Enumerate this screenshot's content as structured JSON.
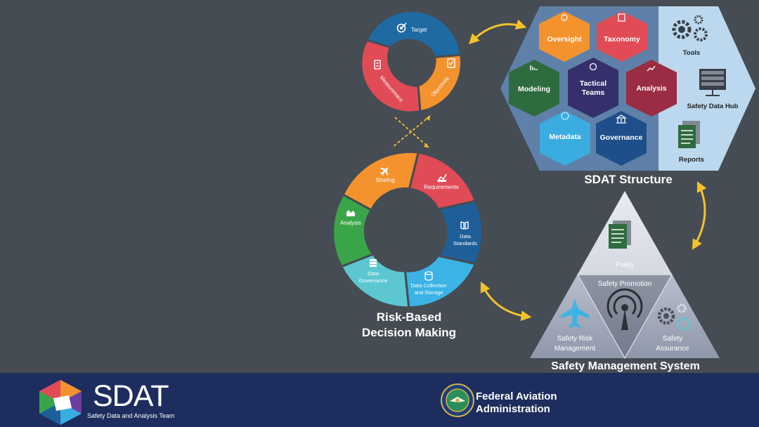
{
  "top_cycle": {
    "segments": [
      {
        "label": "Target",
        "color": "#1f6aa3"
      },
      {
        "label": "Objectives",
        "color": "#f4922e"
      },
      {
        "label": "Measurement",
        "color": "#e04b56"
      }
    ]
  },
  "rbdm_cycle": {
    "title_line1": "Risk-Based",
    "title_line2": "Decision Making",
    "segments": [
      {
        "label": "Sharing",
        "color": "#f4922e"
      },
      {
        "label": "Requirements",
        "color": "#e04b56"
      },
      {
        "label_line1": "Data",
        "label_line2": "Standards",
        "color": "#1f5f99"
      },
      {
        "label_line1": "Data Collection",
        "label_line2": "and Storage",
        "color": "#3bb3e5"
      },
      {
        "label_line1": "Data",
        "label_line2": "Governance",
        "color": "#5cc7d1"
      },
      {
        "label": "Analysis",
        "color": "#3aa548"
      }
    ]
  },
  "sdat_structure": {
    "title": "SDAT Structure",
    "hexes": [
      {
        "label": "Oversight",
        "color": "#f4922e"
      },
      {
        "label": "Taxonomy",
        "color": "#e04b56"
      },
      {
        "label": "Modeling",
        "color": "#2e6b3e"
      },
      {
        "label_line1": "Tactical",
        "label_line2": "Teams",
        "color": "#35306b"
      },
      {
        "label": "Analysis",
        "color": "#9a2c44"
      },
      {
        "label": "Metadata",
        "color": "#3aace0"
      },
      {
        "label": "Governance",
        "color": "#1f4f8a"
      }
    ],
    "side_items": [
      "Tools",
      "Safety Data Hub",
      "Reports"
    ]
  },
  "sms": {
    "title": "Safety Management System",
    "policy": "Policy",
    "promotion": "Safety Promotion",
    "risk_line1": "Safety Risk",
    "risk_line2": "Management",
    "assurance_line1": "Safety",
    "assurance_line2": "Assurance"
  },
  "footer": {
    "logo_text": "SDAT",
    "logo_subtitle": "Safety Data and Analysis Team",
    "faa_line1": "Federal Aviation",
    "faa_line2": "Administration"
  },
  "colors": {
    "background": "#454c53",
    "footer": "#1c2d5e",
    "arrow": "#f3c22a",
    "panel": "#bcd8ee"
  }
}
